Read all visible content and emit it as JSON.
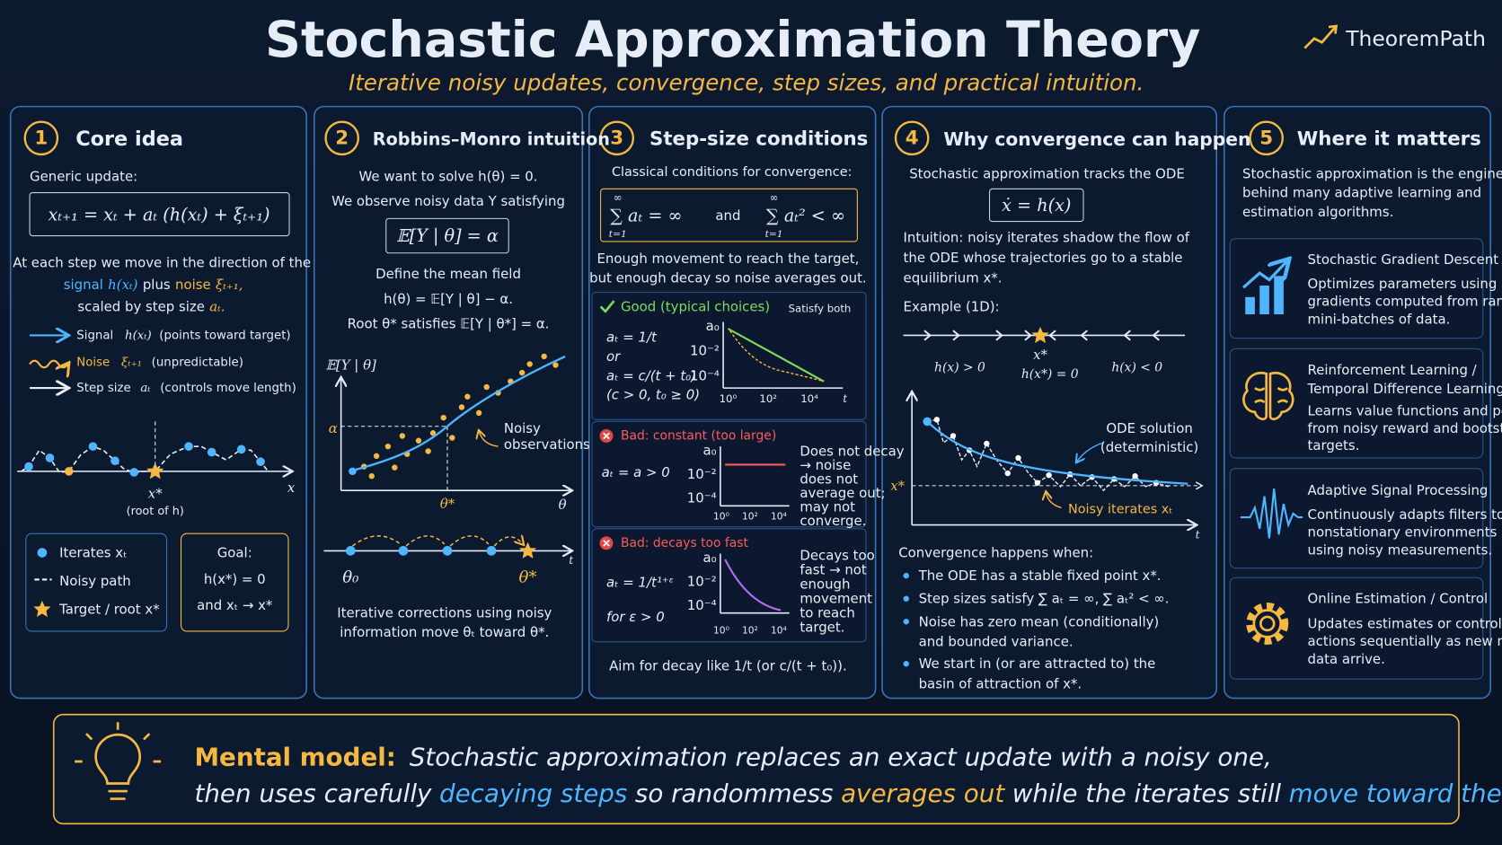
{
  "header": {
    "title": "Stochastic Approximation Theory",
    "subtitle": "Iterative noisy updates, convergence, step sizes, and practical intuition.",
    "brand": "TheoremPath"
  },
  "panels": [
    {
      "number": "1",
      "title": "Core idea",
      "lead": "Generic update:",
      "formula": "xₜ₊₁ = xₜ + aₜ (h(xₜ) + ξₜ₊₁)",
      "explanation": {
        "line1": "At each step we move in the direction of the",
        "signal": "signal",
        "signal_symbol": "h(xₜ)",
        "plus": "plus",
        "noise": "noise",
        "noise_symbol": "ξₜ₊₁,",
        "line3": "scaled by step size",
        "step_symbol": "aₜ."
      },
      "legend": [
        {
          "name": "Signal",
          "symbol": "h(xₜ)",
          "note": "(points toward target)"
        },
        {
          "name": "Noise",
          "symbol": "ξₜ₊₁",
          "note": "(unpredictable)"
        },
        {
          "name": "Step size",
          "symbol": "aₜ",
          "note": "(controls move length)"
        }
      ],
      "plot": {
        "axis": "x",
        "target": "x*",
        "target_note": "(root of h)"
      },
      "key": [
        "Iterates xₜ",
        "Noisy path",
        "Target / root x*"
      ],
      "goal": [
        "Goal:",
        "h(x*) = 0",
        "and xₜ → x*"
      ]
    },
    {
      "number": "2",
      "title": "Robbins–Monro intuition",
      "lines": [
        "We want to solve h(θ) = 0.",
        "We observe noisy data Y satisfying"
      ],
      "formula": "𝔼[Y | θ] = α",
      "mean_field": [
        "Define the mean field",
        "h(θ) = 𝔼[Y | θ] − α.",
        "Root θ* satisfies 𝔼[Y | θ*] = α."
      ],
      "plot": {
        "y_label": "𝔼[Y | θ]",
        "alpha": "α",
        "root": "θ*",
        "x_label": "θ",
        "annotation": [
          "Noisy",
          "observations Y"
        ]
      },
      "path": {
        "start": "θ₀",
        "end": "θ*",
        "axis": "t"
      },
      "caption": [
        "Iterative corrections using noisy",
        "information move θₜ toward θ*."
      ]
    },
    {
      "number": "3",
      "title": "Step-size conditions",
      "lead": "Classical conditions for convergence:",
      "conditions": [
        "∑ aₜ = ∞",
        "and",
        "∑ aₜ² < ∞"
      ],
      "sum_limits": [
        "∞",
        "t=1"
      ],
      "explanation": [
        "Enough movement to reach the target,",
        "but enough decay so noise averages out."
      ],
      "mini_axis": {
        "y_ticks": [
          "a₀",
          "10⁻²",
          "10⁻⁴"
        ],
        "x_ticks": [
          "10⁰",
          "10²",
          "10⁴"
        ],
        "x_label": "t"
      },
      "cases": [
        {
          "label": "Good (typical choices)",
          "tag": "Satisfy both",
          "formulas": [
            "aₜ = 1/t",
            "or",
            "aₜ = c/(t + t₀)",
            "(c > 0, t₀ ≥ 0)"
          ]
        },
        {
          "label": "Bad: constant (too large)",
          "formulas": [
            "aₜ = a > 0"
          ],
          "note": [
            "Does not decay",
            "→ noise",
            "does not",
            "average out;",
            "may not",
            "converge."
          ]
        },
        {
          "label": "Bad: decays too fast",
          "formulas": [
            "aₜ = 1/t¹⁺ᵋ",
            "for ε > 0"
          ],
          "note": [
            "Decays too",
            "fast → not",
            "enough",
            "movement",
            "to reach",
            "target."
          ]
        }
      ],
      "footer": "Aim for decay like 1/t (or c/(t + t₀))."
    },
    {
      "number": "4",
      "title": "Why convergence can happen",
      "lead": "Stochastic approximation tracks the ODE",
      "formula": "ẋ = h(x)",
      "intuition": [
        "Intuition: noisy iterates shadow the flow of",
        "the ODE whose trajectories go to a stable",
        "equilibrium x*."
      ],
      "example": "Example (1D):",
      "flow": {
        "target": "x*",
        "left": "h(x) > 0",
        "center": "h(x*) = 0",
        "right": "h(x) < 0"
      },
      "plot": {
        "target": "x*",
        "ode": [
          "ODE solution",
          "(deterministic)"
        ],
        "noisy": "Noisy iterates xₜ",
        "axis": "t"
      },
      "conditions_title": "Convergence happens when:",
      "conditions": [
        [
          "The ODE has a stable fixed point x*."
        ],
        [
          "Step sizes satisfy ∑ aₜ = ∞,  ∑ aₜ² < ∞."
        ],
        [
          "Noise has zero mean (conditionally)",
          "and bounded variance."
        ],
        [
          "We start in (or are attracted to) the",
          "basin of attraction of x*."
        ]
      ]
    },
    {
      "number": "5",
      "title": "Where it matters",
      "lead": [
        "Stochastic approximation is the engine",
        "behind many adaptive learning and",
        "estimation algorithms."
      ],
      "applications": [
        {
          "title": [
            "Stochastic Gradient Descent"
          ],
          "description": [
            "Optimizes parameters using noisy",
            "gradients computed from random",
            "mini-batches of data."
          ]
        },
        {
          "title": [
            "Reinforcement Learning /",
            "Temporal Difference Learning"
          ],
          "description": [
            "Learns value functions and policies",
            "from noisy reward and bootstrapped",
            "targets."
          ]
        },
        {
          "title": [
            "Adaptive Signal Processing"
          ],
          "description": [
            "Continuously adapts filters to",
            "nonstationary environments",
            "using noisy measurements."
          ]
        },
        {
          "title": [
            "Online Estimation / Control"
          ],
          "description": [
            "Updates estimates or control",
            "actions sequentially as new noisy",
            "data arrive."
          ]
        }
      ]
    }
  ],
  "mental_model": {
    "label": "Mental model:",
    "line1": "Stochastic approximation replaces an exact update with a noisy one,",
    "line2": [
      "then uses carefully",
      "decaying steps",
      "so randommess",
      "averages out",
      "while the iterates still",
      "move toward the target",
      "."
    ]
  }
}
